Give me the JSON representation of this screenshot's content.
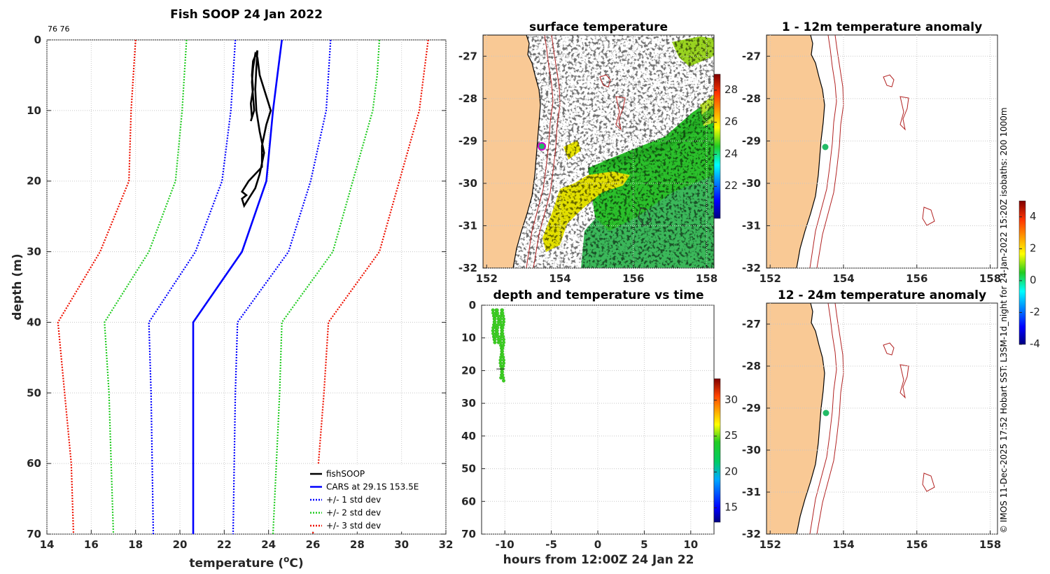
{
  "page_title": "Fish SOOP 24 Jan 2022",
  "credit": "© IMOS 11-Dec-2025 17:52 Hobart SST: L3SM-1d_night for 24-Jan-2022 15:20Z isobaths: 200  1000m",
  "colors": {
    "land": "#f9c995",
    "fish": "#000000",
    "cars": "#0000ff",
    "sd1": "#0000ff",
    "sd2": "#22cc22",
    "sd3": "#ee1100",
    "isobath": "#b22222",
    "station": "#22bb66"
  },
  "chart_data": [
    {
      "id": "profile",
      "type": "line",
      "title": "Fish SOOP 24 Jan 2022",
      "corner_label": "76 76",
      "xlabel_main": "temperature (",
      "xlabel_sup": "o",
      "xlabel_end": "C)",
      "ylabel": "depth (m)",
      "xlim": [
        14,
        32
      ],
      "ylim": [
        70,
        0
      ],
      "xticks": [
        "14",
        "16",
        "18",
        "20",
        "22",
        "24",
        "26",
        "28",
        "30",
        "32"
      ],
      "yticks": [
        "0",
        "10",
        "20",
        "30",
        "40",
        "50",
        "60",
        "70"
      ],
      "legend": [
        "fishSOOP",
        "CARS at 29.1S 153.5E",
        "+/- 1 std dev",
        "+/- 2 std dev",
        "+/- 3 std dev"
      ],
      "legend_position": "bottom-right",
      "depths": [
        0,
        5,
        10,
        20,
        30,
        40,
        50,
        60,
        70
      ],
      "cars": [
        24.6,
        24.4,
        24.2,
        23.9,
        22.8,
        20.6,
        20.6,
        20.6,
        20.6
      ],
      "sd1_low": [
        22.5,
        22.4,
        22.3,
        21.9,
        20.7,
        18.6,
        18.7,
        18.75,
        18.8
      ],
      "sd1_high": [
        26.8,
        26.7,
        26.6,
        25.9,
        24.9,
        22.6,
        22.5,
        22.45,
        22.4
      ],
      "sd2_low": [
        20.3,
        20.2,
        20.1,
        19.8,
        18.6,
        16.6,
        16.8,
        16.9,
        17.0
      ],
      "sd2_high": [
        29.0,
        28.9,
        28.7,
        27.8,
        26.9,
        24.6,
        24.5,
        24.35,
        24.2
      ],
      "sd3_low": [
        18.0,
        17.9,
        17.8,
        17.7,
        16.4,
        14.5,
        14.8,
        15.1,
        15.2
      ],
      "sd3_high": [
        31.2,
        31.0,
        30.8,
        29.9,
        29.0,
        26.7,
        26.5,
        26.25,
        26.0
      ],
      "fish_depths": [
        1.5,
        3,
        5,
        7,
        9,
        11,
        11.5,
        10,
        8,
        6,
        4,
        2,
        2.5,
        5,
        8,
        10,
        12,
        15,
        18,
        20,
        21.5,
        22,
        22.5,
        23.5,
        22,
        21,
        19,
        16,
        13,
        10,
        7,
        4,
        1.5
      ],
      "fish_temps": [
        23.5,
        23.3,
        23.25,
        23.3,
        23.2,
        23.25,
        23.2,
        23.35,
        23.3,
        23.25,
        23.3,
        23.4,
        23.5,
        23.6,
        23.9,
        24.1,
        23.9,
        23.7,
        23.7,
        23.1,
        22.8,
        23.0,
        22.8,
        22.9,
        23.2,
        23.4,
        23.6,
        23.8,
        23.6,
        23.45,
        23.4,
        23.45,
        23.5
      ]
    },
    {
      "id": "sst",
      "type": "heatmap",
      "title": "surface temperature",
      "xlim": [
        151.9,
        158.2
      ],
      "ylim": [
        -32,
        -26.5
      ],
      "xticks": [
        "152",
        "154",
        "156",
        "158"
      ],
      "yticks": [
        "-27",
        "-28",
        "-29",
        "-30",
        "-31",
        "-32"
      ],
      "colorbar_range": [
        20,
        29
      ],
      "colorbar_ticks": [
        "22",
        "24",
        "26",
        "28"
      ],
      "station": [
        153.45,
        -29.1
      ]
    },
    {
      "id": "time",
      "type": "scatter",
      "title": "depth and temperature vs time",
      "xlabel": "hours from 12:00Z 24 Jan 22",
      "xlim": [
        -12.5,
        12.5
      ],
      "ylim": [
        70,
        0
      ],
      "xticks": [
        "-10",
        "-5",
        "0",
        "5",
        "10"
      ],
      "yticks": [
        "0",
        "10",
        "20",
        "30",
        "40",
        "50",
        "60",
        "70"
      ],
      "colorbar_range": [
        13,
        33
      ],
      "colorbar_ticks": [
        "15",
        "20",
        "25",
        "30"
      ],
      "casts": [
        -11.2,
        -11.0,
        -10.75,
        -10.4,
        -10.2
      ],
      "cast_max_depth": [
        11,
        11.5,
        12,
        22.5,
        23.5
      ]
    },
    {
      "id": "anom1",
      "type": "heatmap",
      "title": "1 - 12m temperature anomaly",
      "xlim": [
        151.9,
        158.2
      ],
      "ylim": [
        -32,
        -26.5
      ],
      "xticks": [
        "152",
        "154",
        "156",
        "158"
      ],
      "yticks": [
        "-27",
        "-28",
        "-29",
        "-30",
        "-31",
        "-32"
      ],
      "station": [
        153.45,
        -29.1
      ]
    },
    {
      "id": "anom2",
      "type": "heatmap",
      "title": "12 - 24m temperature anomaly",
      "xlim": [
        151.9,
        158.2
      ],
      "ylim": [
        -32,
        -26.5
      ],
      "xticks": [
        "152",
        "154",
        "156",
        "158"
      ],
      "yticks": [
        "-27",
        "-28",
        "-29",
        "-30",
        "-31",
        "-32"
      ],
      "station": [
        153.45,
        -29.1
      ]
    },
    {
      "id": "anom_colorbar",
      "type": "colorbar",
      "range": [
        -4,
        5
      ],
      "ticks": [
        "4",
        "2",
        "0",
        "-2",
        "-4"
      ]
    }
  ]
}
